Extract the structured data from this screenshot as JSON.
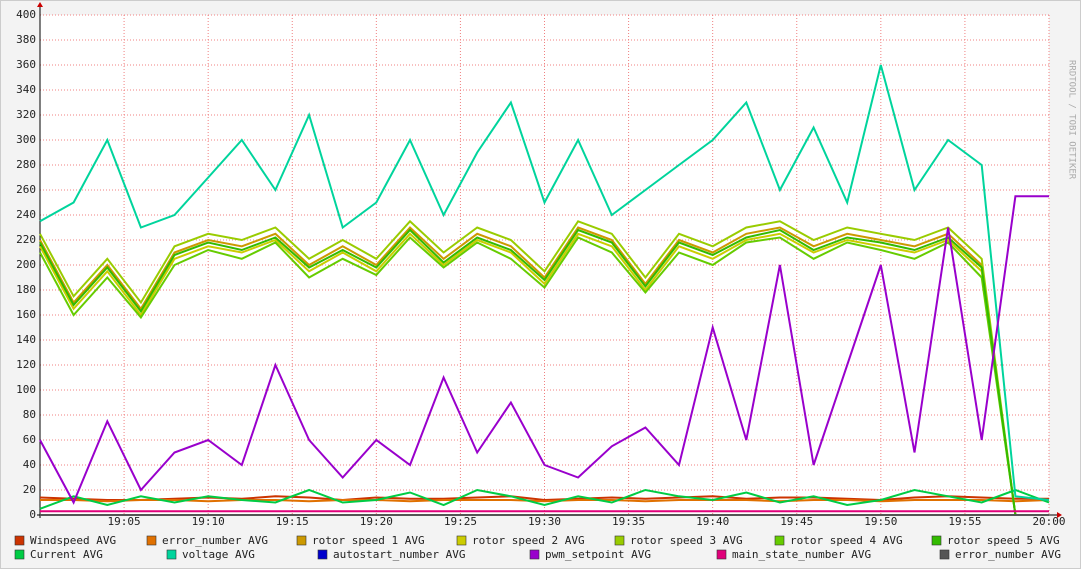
{
  "chart_data": {
    "type": "line",
    "watermark": "RRDTOOL / TOBI OETIKER",
    "x": [
      "19:00",
      "19:02",
      "19:04",
      "19:06",
      "19:08",
      "19:10",
      "19:12",
      "19:14",
      "19:16",
      "19:18",
      "19:20",
      "19:22",
      "19:24",
      "19:26",
      "19:28",
      "19:30",
      "19:32",
      "19:34",
      "19:36",
      "19:38",
      "19:40",
      "19:42",
      "19:44",
      "19:46",
      "19:48",
      "19:50",
      "19:52",
      "19:54",
      "19:56",
      "19:58",
      "20:00"
    ],
    "xlim": [
      "19:00",
      "20:00"
    ],
    "xticks": [
      "19:05",
      "19:10",
      "19:15",
      "19:20",
      "19:25",
      "19:30",
      "19:35",
      "19:40",
      "19:45",
      "19:50",
      "19:55",
      "20:00"
    ],
    "ylim": [
      0,
      400
    ],
    "yticks": [
      0,
      20,
      40,
      60,
      80,
      100,
      120,
      140,
      160,
      180,
      200,
      220,
      240,
      260,
      280,
      300,
      320,
      340,
      360,
      380,
      400
    ],
    "grid": true,
    "series": [
      {
        "name": "Windspeed AVG",
        "color": "#cc3300",
        "values": [
          14,
          13,
          12,
          12,
          13,
          14,
          13,
          15,
          14,
          12,
          14,
          13,
          13,
          14,
          15,
          12,
          13,
          14,
          13,
          14,
          15,
          13,
          14,
          14,
          13,
          12,
          14,
          15,
          14,
          13,
          13
        ]
      },
      {
        "name": "error_number AVG",
        "color": "#e07000",
        "values": [
          12,
          12,
          11,
          12,
          12,
          11,
          12,
          12,
          11,
          12,
          12,
          11,
          12,
          12,
          12,
          11,
          12,
          12,
          11,
          12,
          12,
          12,
          11,
          12,
          12,
          11,
          12,
          12,
          12,
          11,
          12
        ]
      },
      {
        "name": "rotor speed 1 AVG",
        "color": "#cc9900",
        "values": [
          220,
          170,
          200,
          165,
          210,
          220,
          215,
          225,
          200,
          215,
          200,
          230,
          205,
          225,
          215,
          190,
          230,
          220,
          185,
          220,
          210,
          225,
          230,
          215,
          225,
          220,
          215,
          225,
          200,
          0,
          0
        ]
      },
      {
        "name": "rotor speed 2 AVG",
        "color": "#cccc00",
        "values": [
          215,
          165,
          195,
          160,
          205,
          215,
          210,
          220,
          195,
          210,
          195,
          225,
          200,
          220,
          210,
          185,
          225,
          215,
          180,
          215,
          205,
          220,
          225,
          210,
          220,
          215,
          210,
          220,
          195,
          0,
          0
        ]
      },
      {
        "name": "rotor speed 3 AVG",
        "color": "#99cc00",
        "values": [
          225,
          175,
          205,
          170,
          215,
          225,
          220,
          230,
          205,
          220,
          205,
          235,
          210,
          230,
          220,
          195,
          235,
          225,
          190,
          225,
          215,
          230,
          235,
          220,
          230,
          225,
          220,
          230,
          205,
          0,
          0
        ]
      },
      {
        "name": "rotor speed 4 AVG",
        "color": "#66cc00",
        "values": [
          210,
          160,
          190,
          158,
          200,
          212,
          205,
          218,
          190,
          205,
          192,
          222,
          198,
          218,
          205,
          182,
          222,
          210,
          178,
          210,
          200,
          218,
          222,
          205,
          218,
          212,
          205,
          218,
          190,
          0,
          0
        ]
      },
      {
        "name": "rotor speed 5 AVG",
        "color": "#33bb00",
        "values": [
          218,
          168,
          198,
          163,
          208,
          218,
          212,
          222,
          198,
          212,
          198,
          228,
          202,
          222,
          212,
          188,
          228,
          218,
          183,
          218,
          208,
          222,
          228,
          212,
          222,
          218,
          212,
          222,
          198,
          0,
          0
        ]
      },
      {
        "name": "Current AVG",
        "color": "#00cc44",
        "values": [
          5,
          15,
          8,
          15,
          10,
          15,
          12,
          10,
          20,
          10,
          12,
          18,
          8,
          20,
          15,
          8,
          15,
          10,
          20,
          15,
          12,
          18,
          10,
          15,
          8,
          12,
          20,
          15,
          10,
          20,
          10
        ]
      },
      {
        "name": "voltage AVG",
        "color": "#00d49c",
        "values": [
          235,
          250,
          300,
          230,
          240,
          270,
          300,
          260,
          320,
          230,
          250,
          300,
          240,
          290,
          330,
          250,
          300,
          240,
          260,
          280,
          300,
          330,
          260,
          310,
          250,
          360,
          260,
          300,
          280,
          15,
          12
        ]
      },
      {
        "name": "autostart_number AVG",
        "color": "#0000cc",
        "values": [
          0,
          0,
          0,
          0,
          0,
          0,
          0,
          0,
          0,
          0,
          0,
          0,
          0,
          0,
          0,
          0,
          0,
          0,
          0,
          0,
          0,
          0,
          0,
          0,
          0,
          0,
          0,
          0,
          0,
          0,
          0
        ]
      },
      {
        "name": "pwm_setpoint AVG",
        "color": "#9900cc",
        "values": [
          60,
          10,
          75,
          20,
          50,
          60,
          40,
          120,
          60,
          30,
          60,
          40,
          110,
          50,
          90,
          40,
          30,
          55,
          70,
          40,
          150,
          60,
          200,
          40,
          120,
          200,
          50,
          230,
          60,
          255,
          255
        ]
      },
      {
        "name": "main_state_number AVG",
        "color": "#e0007a",
        "values": [
          3,
          3,
          3,
          3,
          3,
          3,
          3,
          3,
          3,
          3,
          3,
          3,
          3,
          3,
          3,
          3,
          3,
          3,
          3,
          3,
          3,
          3,
          3,
          3,
          3,
          3,
          3,
          3,
          3,
          3,
          3
        ]
      },
      {
        "name": "error_number AVG",
        "color": "#555555",
        "values": [
          0,
          0,
          0,
          0,
          0,
          0,
          0,
          0,
          0,
          0,
          0,
          0,
          0,
          0,
          0,
          0,
          0,
          0,
          0,
          0,
          0,
          0,
          0,
          0,
          0,
          0,
          0,
          0,
          0,
          0,
          0
        ]
      }
    ]
  }
}
